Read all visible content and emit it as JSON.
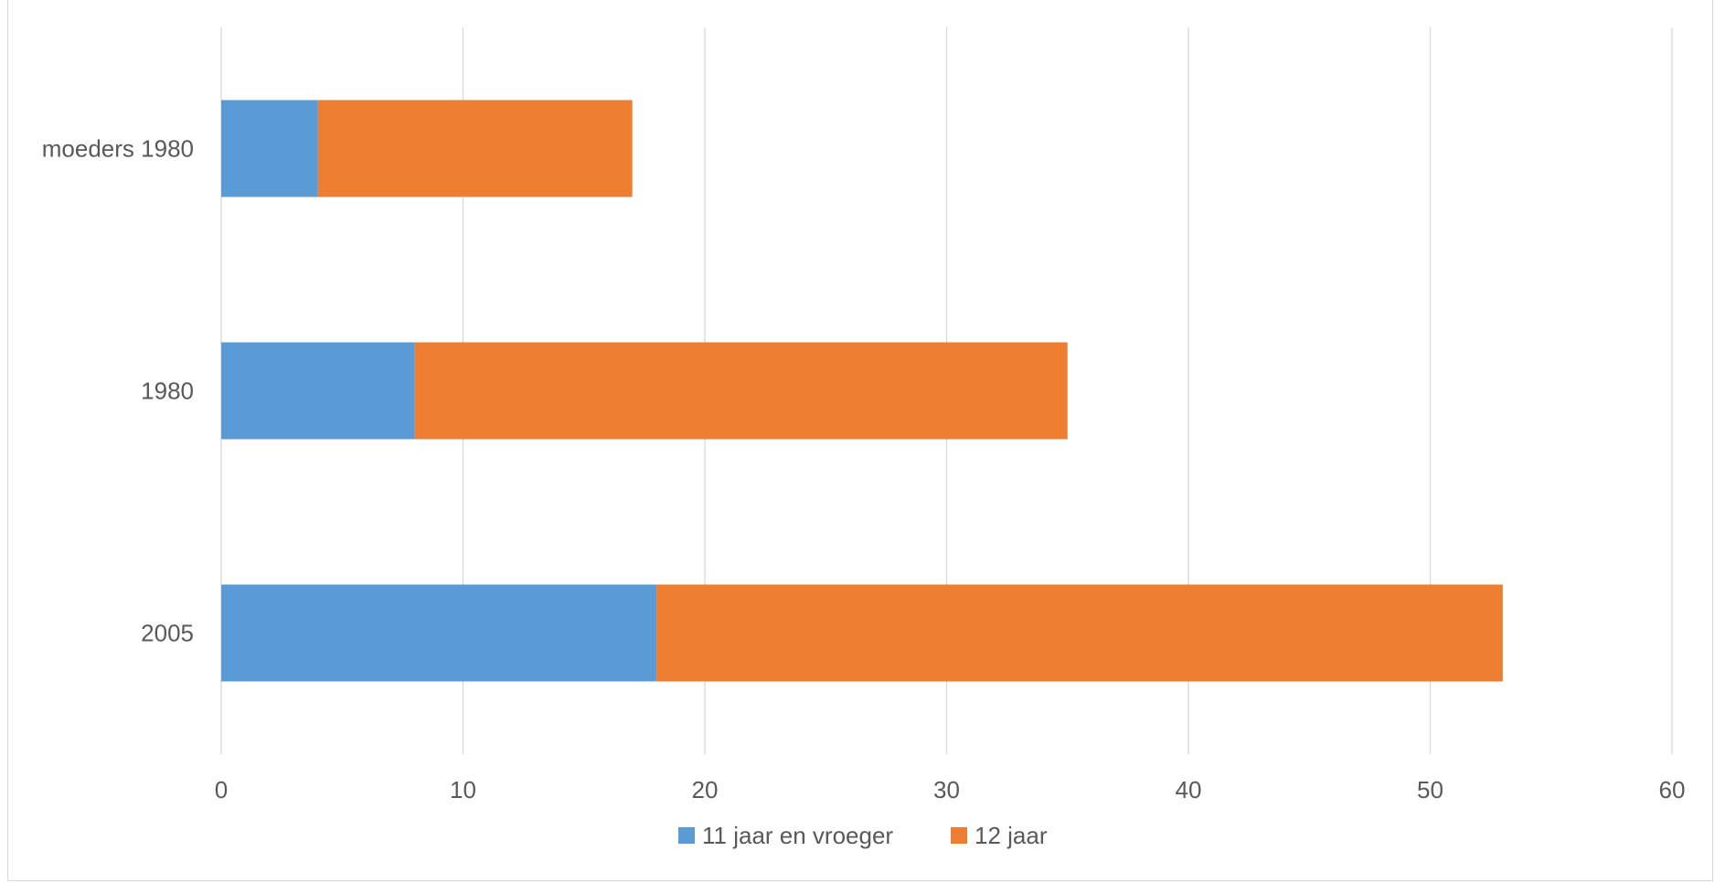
{
  "chart_data": {
    "type": "bar",
    "orientation": "horizontal",
    "stacked": true,
    "categories": [
      "moeders 1980",
      "1980",
      "2005"
    ],
    "series": [
      {
        "name": "11 jaar en vroeger",
        "values": [
          4,
          8,
          18
        ],
        "color": "#5b9bd5"
      },
      {
        "name": "12 jaar",
        "values": [
          13,
          27,
          35
        ],
        "color": "#ed7d31"
      }
    ],
    "x_ticks": [
      "0",
      "10",
      "20",
      "30",
      "40",
      "50",
      "60"
    ],
    "xlim": [
      0,
      60
    ],
    "grid": "vertical",
    "legend": "bottom"
  }
}
